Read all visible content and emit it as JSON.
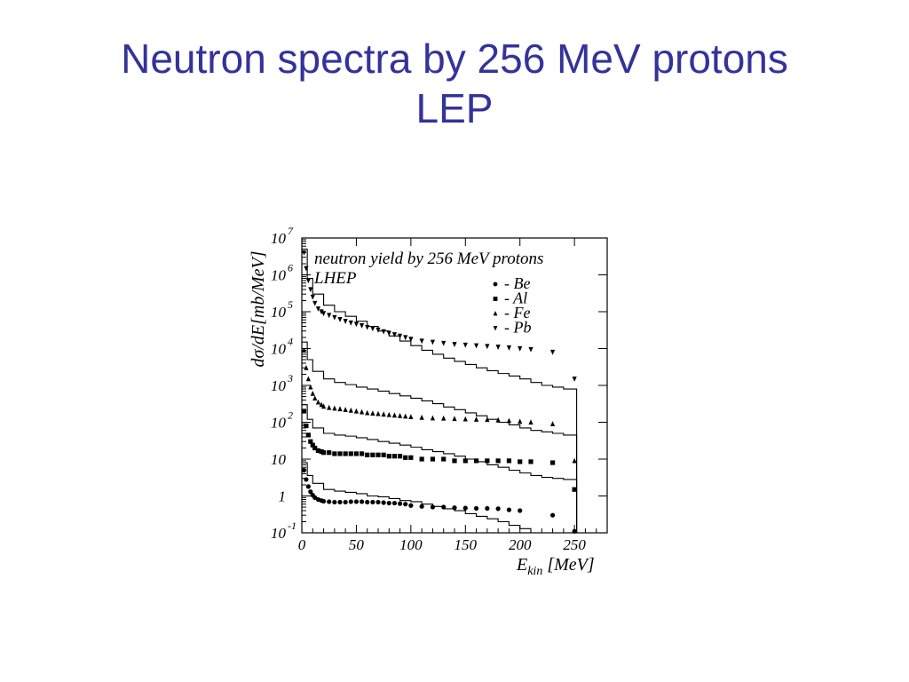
{
  "slide": {
    "title_line1": "Neutron spectra by 256 MeV protons",
    "title_line2": "LEP"
  },
  "colors": {
    "title": "#33339a",
    "plot": "#000000"
  },
  "chart_data": {
    "type": "scatter",
    "title": "neutron yield by 256 MeV protons",
    "subtitle": "LHEP",
    "xlabel_main": "E",
    "xlabel_sub": "kin",
    "xlabel_unit": "[MeV]",
    "ylabel": "dσ/dE[mb/MeV]",
    "xlim": [
      0,
      280
    ],
    "ylim": [
      0.1,
      10000000
    ],
    "y_scale": "log",
    "x_ticks": [
      0,
      50,
      100,
      150,
      200,
      250
    ],
    "y_ticks": [
      {
        "value": 0.1,
        "base": "10",
        "exp": "-1"
      },
      {
        "value": 1,
        "base": "1",
        "exp": ""
      },
      {
        "value": 10,
        "base": "10",
        "exp": ""
      },
      {
        "value": 100,
        "base": "10",
        "exp": "2"
      },
      {
        "value": 1000,
        "base": "10",
        "exp": "3"
      },
      {
        "value": 10000,
        "base": "10",
        "exp": "4"
      },
      {
        "value": 100000,
        "base": "10",
        "exp": "5"
      },
      {
        "value": 1000000,
        "base": "10",
        "exp": "6"
      },
      {
        "value": 10000000,
        "base": "10",
        "exp": "7"
      }
    ],
    "legend_position": "top-right",
    "series": [
      {
        "name": "Be",
        "legend_label": "- Be",
        "marker": "circle",
        "x": [
          2,
          4,
          6,
          8,
          10,
          12,
          15,
          18,
          20,
          25,
          30,
          35,
          40,
          45,
          50,
          55,
          60,
          65,
          70,
          75,
          80,
          85,
          90,
          95,
          100,
          110,
          120,
          130,
          140,
          150,
          160,
          170,
          180,
          190,
          200,
          230,
          250
        ],
        "y": [
          5,
          2.8,
          1.8,
          1.3,
          1.05,
          0.9,
          0.8,
          0.75,
          0.72,
          0.7,
          0.68,
          0.68,
          0.68,
          0.7,
          0.7,
          0.7,
          0.68,
          0.68,
          0.68,
          0.66,
          0.64,
          0.64,
          0.62,
          0.6,
          0.55,
          0.52,
          0.5,
          0.5,
          0.48,
          0.47,
          0.46,
          0.46,
          0.45,
          0.42,
          0.4,
          0.3,
          0.11
        ],
        "model_x": [
          0,
          5,
          10,
          20,
          30,
          40,
          50,
          60,
          70,
          80,
          90,
          100,
          110,
          120,
          130,
          140,
          150,
          160,
          170,
          180,
          190,
          200,
          210,
          220,
          230,
          240,
          252
        ],
        "model_y": [
          8,
          3.6,
          2.2,
          1.5,
          1.35,
          1.25,
          1.15,
          1.0,
          0.95,
          0.85,
          0.75,
          0.7,
          0.6,
          0.52,
          0.45,
          0.4,
          0.33,
          0.28,
          0.24,
          0.2,
          0.16,
          0.13,
          0.1,
          0.09,
          0.09,
          0.09,
          0.05
        ]
      },
      {
        "name": "Al",
        "legend_label": "- Al",
        "marker": "square",
        "x": [
          2,
          4,
          6,
          8,
          10,
          12,
          15,
          18,
          20,
          25,
          30,
          35,
          40,
          45,
          50,
          55,
          60,
          65,
          70,
          75,
          80,
          85,
          90,
          95,
          100,
          110,
          120,
          130,
          140,
          150,
          160,
          170,
          180,
          190,
          200,
          210,
          230,
          250
        ],
        "y": [
          200,
          80,
          45,
          30,
          24,
          20,
          17,
          16,
          15,
          15,
          14,
          14,
          14,
          14,
          14,
          14,
          13,
          13,
          13,
          13,
          12,
          12,
          12,
          11,
          11,
          10,
          10,
          10,
          9,
          9,
          9,
          9,
          9,
          9,
          8.5,
          8.5,
          8,
          1.5
        ],
        "model_x": [
          0,
          5,
          10,
          20,
          30,
          40,
          50,
          60,
          70,
          80,
          90,
          100,
          110,
          120,
          130,
          140,
          150,
          160,
          170,
          180,
          190,
          200,
          210,
          220,
          230,
          240,
          252
        ],
        "model_y": [
          300,
          120,
          70,
          50,
          45,
          42,
          38,
          34,
          30,
          27,
          24,
          21,
          18,
          16,
          14,
          12,
          10,
          8.5,
          7,
          6,
          5,
          4.2,
          3.6,
          3.2,
          3.0,
          2.8,
          1.0
        ]
      },
      {
        "name": "Fe",
        "legend_label": "- Fe",
        "marker": "triangle-up",
        "x": [
          2,
          4,
          6,
          8,
          10,
          12,
          15,
          18,
          20,
          25,
          30,
          35,
          40,
          45,
          50,
          55,
          60,
          65,
          70,
          75,
          80,
          85,
          90,
          95,
          100,
          110,
          120,
          130,
          140,
          150,
          160,
          170,
          180,
          190,
          200,
          210,
          230,
          250
        ],
        "y": [
          9000,
          3000,
          1500,
          900,
          600,
          450,
          350,
          300,
          270,
          250,
          240,
          230,
          220,
          210,
          200,
          190,
          180,
          175,
          170,
          165,
          160,
          155,
          150,
          145,
          140,
          135,
          130,
          128,
          125,
          122,
          120,
          118,
          115,
          110,
          105,
          100,
          90,
          9
        ],
        "model_x": [
          0,
          5,
          10,
          20,
          30,
          40,
          50,
          60,
          70,
          80,
          90,
          100,
          110,
          120,
          130,
          140,
          150,
          160,
          170,
          180,
          190,
          200,
          210,
          220,
          230,
          240,
          252
        ],
        "model_y": [
          15000,
          5000,
          2400,
          1500,
          1200,
          1050,
          900,
          800,
          700,
          600,
          520,
          450,
          380,
          320,
          260,
          220,
          180,
          150,
          120,
          100,
          85,
          70,
          60,
          55,
          50,
          45,
          15
        ]
      },
      {
        "name": "Pb",
        "legend_label": "- Pb",
        "marker": "triangle-down",
        "x": [
          2,
          4,
          6,
          8,
          10,
          12,
          15,
          18,
          20,
          25,
          30,
          35,
          40,
          45,
          50,
          55,
          60,
          65,
          70,
          75,
          80,
          85,
          90,
          95,
          100,
          110,
          120,
          130,
          140,
          150,
          160,
          170,
          180,
          190,
          200,
          210,
          230,
          250
        ],
        "y": [
          4000000,
          1500000,
          700000,
          400000,
          250000,
          170000,
          120000,
          100000,
          90000,
          80000,
          70000,
          62000,
          55000,
          50000,
          46000,
          42000,
          38000,
          35000,
          32000,
          29000,
          26000,
          24000,
          22000,
          20000,
          18000,
          16000,
          15000,
          14000,
          13000,
          12500,
          12000,
          11500,
          11000,
          10500,
          10000,
          9500,
          8000,
          1500
        ],
        "model_x": [
          0,
          5,
          10,
          20,
          30,
          40,
          50,
          60,
          70,
          80,
          90,
          100,
          110,
          120,
          130,
          140,
          150,
          160,
          170,
          180,
          190,
          200,
          210,
          220,
          230,
          240,
          252
        ],
        "model_y": [
          5000000,
          800000,
          300000,
          150000,
          100000,
          75000,
          55000,
          40000,
          30000,
          22000,
          16000,
          12000,
          9000,
          7000,
          5500,
          4500,
          3700,
          3000,
          2500,
          2100,
          1800,
          1500,
          1200,
          1000,
          900,
          800,
          20
        ]
      }
    ]
  }
}
